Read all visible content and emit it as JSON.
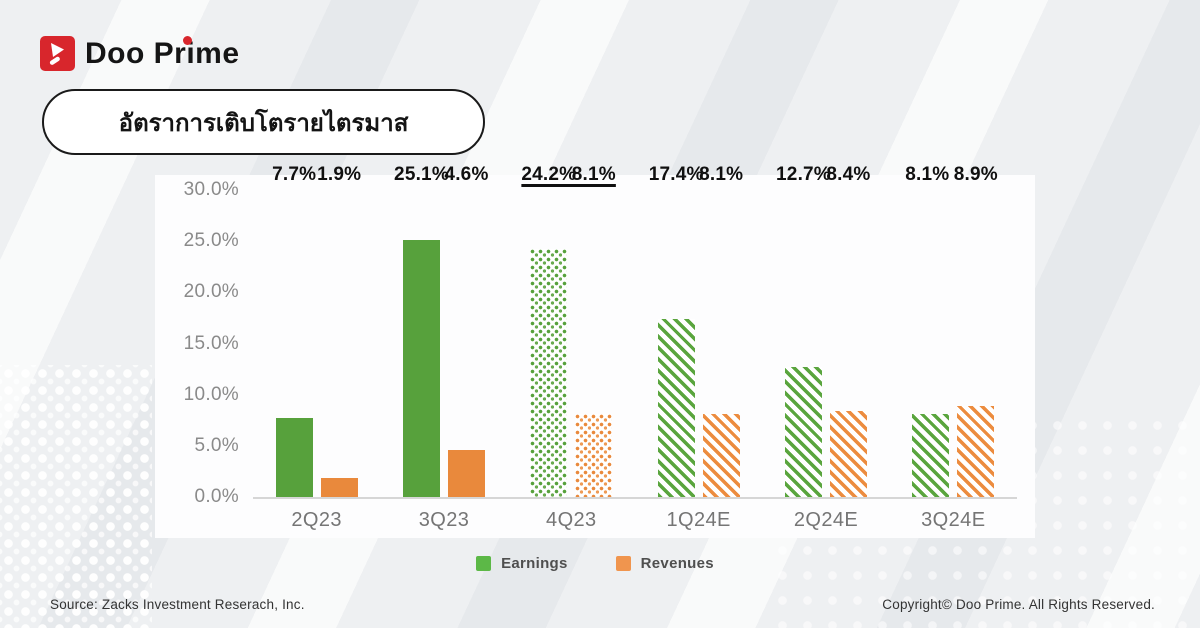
{
  "brand": {
    "name": "Doo Prime",
    "accent_red": "#d8262c"
  },
  "title": "อัตราการเติบโตรายไตรมาส",
  "chart_data": {
    "type": "bar",
    "title": "อัตราการเติบโตรายไตรมาส",
    "categories": [
      "2Q23",
      "3Q23",
      "4Q23",
      "1Q24E",
      "2Q24E",
      "3Q24E"
    ],
    "series": [
      {
        "name": "Earnings",
        "key": "earnings",
        "color": "#57a13c",
        "values": [
          7.7,
          25.1,
          24.2,
          17.4,
          12.7,
          8.1
        ],
        "labels": [
          "7.7%",
          "25.1%",
          "24.2%",
          "17.4%",
          "12.7%",
          "8.1%"
        ]
      },
      {
        "name": "Revenues",
        "key": "revenues",
        "color": "#e9893c",
        "values": [
          1.9,
          4.6,
          8.1,
          8.1,
          8.4,
          8.9
        ],
        "labels": [
          "1.9%",
          "4.6%",
          "8.1%",
          "8.1%",
          "8.4%",
          "8.9%"
        ]
      }
    ],
    "bar_styles": [
      "solid",
      "solid",
      "dotted",
      "striped",
      "striped",
      "striped"
    ],
    "underlined_category_index": 2,
    "y_ticks": [
      "30.0%",
      "25.0%",
      "20.0%",
      "15.0%",
      "10.0%",
      "5.0%",
      "0.0%"
    ],
    "ylim": [
      0,
      30
    ],
    "grid": false,
    "legend_position": "bottom",
    "legend": [
      {
        "label": "Earnings",
        "color": "#5cb847"
      },
      {
        "label": "Revenues",
        "color": "#f0954e"
      }
    ]
  },
  "footer": {
    "source": "Source: Zacks Investment Reserach, Inc.",
    "copyright": "Copyright© Doo Prime. All Rights Reserved."
  }
}
